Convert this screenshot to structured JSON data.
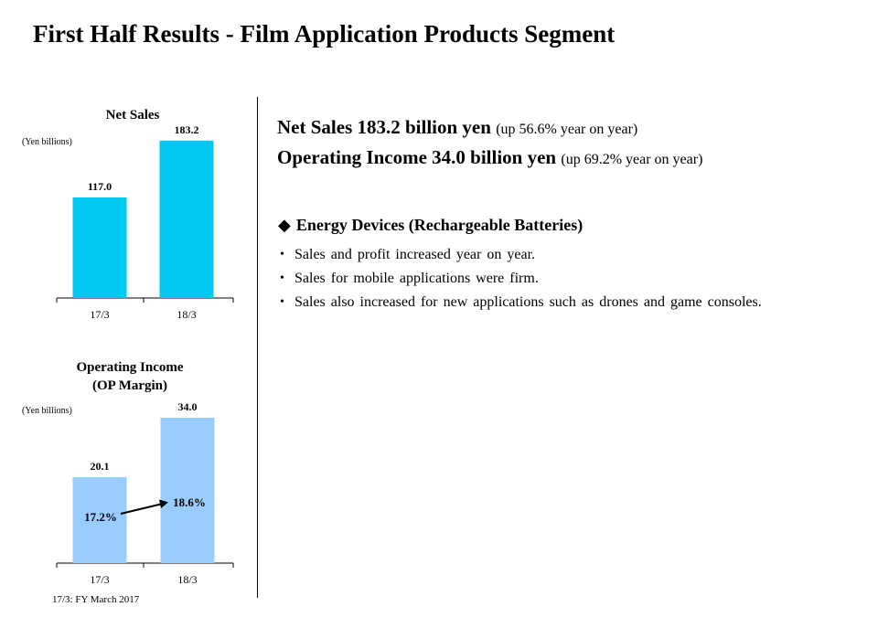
{
  "page": {
    "title": "First Half Results - Film Application Products Segment",
    "footnote": "17/3:  FY March 2017"
  },
  "summary": {
    "net_sales_strong": "Net Sales 183.2 billion yen",
    "net_sales_note": "(up 56.6% year  on year)",
    "op_income_strong": "Operating Income 34.0 billion yen",
    "op_income_note": "(up 69.2% year  on year)"
  },
  "section": {
    "bullet_glyph": "◆",
    "heading": "Energy Devices (Rechargeable Batteries)",
    "bullets": [
      "Sales and profit increased year on year.",
      "Sales for mobile applications were firm.",
      "Sales also increased for new applications such as drones and game consoles."
    ]
  },
  "chart_data": [
    {
      "type": "bar",
      "title": "Net Sales",
      "unit_label": "(Yen billions)",
      "categories": [
        "17/3",
        "18/3"
      ],
      "values": [
        117.0,
        183.2
      ],
      "value_labels": [
        "117.0",
        "183.2"
      ],
      "ylim": [
        0,
        200
      ],
      "color": "#00c8f0"
    },
    {
      "type": "bar",
      "title": "Operating Income",
      "subtitle": "(OP Margin)",
      "unit_label": "(Yen billions)",
      "categories": [
        "17/3",
        "18/3"
      ],
      "values": [
        20.1,
        34.0
      ],
      "value_labels": [
        "20.1",
        "34.0"
      ],
      "margins": [
        "17.2%",
        "18.6%"
      ],
      "ylim": [
        0,
        37
      ],
      "color": "#99ccff"
    }
  ]
}
